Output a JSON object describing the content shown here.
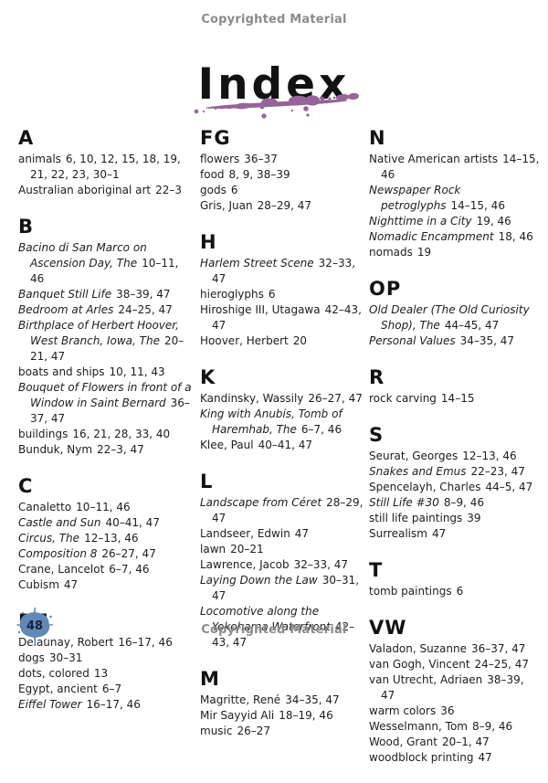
{
  "page": {
    "copyright_top": "Copyrighted Material",
    "copyright_bottom": "Copyrighted Material",
    "title": "Index",
    "page_number": "48",
    "colors": {
      "splatter_purple": "#95659a",
      "page_badge_blue": "#6288b6",
      "text": "#1d1d1f",
      "copyright_gray": "#8b8b8b"
    }
  },
  "index": {
    "columns": [
      {
        "sections": [
          {
            "heading": "A",
            "entries": [
              {
                "title": "animals",
                "italic": false,
                "pages": "6, 10, 12, 15, 18, 19, 21, 22, 23, 30–1"
              },
              {
                "title": "Australian aboriginal art",
                "italic": false,
                "pages": "22–3"
              }
            ]
          },
          {
            "heading": "B",
            "entries": [
              {
                "title": "Bacino di San Marco on Ascension Day, The",
                "italic": true,
                "pages": "10–11, 46"
              },
              {
                "title": "Banquet Still Life",
                "italic": true,
                "pages": "38–39, 47"
              },
              {
                "title": "Bedroom at Arles",
                "italic": true,
                "pages": "24–25, 47"
              },
              {
                "title": "Birthplace of Herbert Hoover, West Branch, Iowa, The",
                "italic": true,
                "pages": "20–21, 47"
              },
              {
                "title": "boats and ships",
                "italic": false,
                "pages": "10, 11, 43"
              },
              {
                "title": "Bouquet of Flowers in front of a Window in Saint Bernard",
                "italic": true,
                "pages": "36–37, 47"
              },
              {
                "title": "buildings",
                "italic": false,
                "pages": "16, 21, 28, 33, 40"
              },
              {
                "title": "Bunduk, Nym",
                "italic": false,
                "pages": "22–3, 47"
              }
            ]
          },
          {
            "heading": "C",
            "entries": [
              {
                "title": "Canaletto",
                "italic": false,
                "pages": "10–11, 46"
              },
              {
                "title": "Castle and Sun",
                "italic": true,
                "pages": "40–41, 47"
              },
              {
                "title": "Circus, The",
                "italic": true,
                "pages": "12–13, 46"
              },
              {
                "title": "Composition 8",
                "italic": true,
                "pages": "26–27, 47"
              },
              {
                "title": "Crane, Lancelot",
                "italic": false,
                "pages": "6–7, 46"
              },
              {
                "title": "Cubism",
                "italic": false,
                "pages": "47"
              }
            ]
          },
          {
            "heading": "DE",
            "entries": [
              {
                "title": "Delaunay, Robert",
                "italic": false,
                "pages": "16–17, 46"
              },
              {
                "title": "dogs",
                "italic": false,
                "pages": "30–31"
              },
              {
                "title": "dots, colored",
                "italic": false,
                "pages": "13"
              },
              {
                "title": "Egypt, ancient",
                "italic": false,
                "pages": "6–7"
              },
              {
                "title": "Eiffel Tower",
                "italic": true,
                "pages": "16–17, 46"
              }
            ]
          }
        ]
      },
      {
        "sections": [
          {
            "heading": "FG",
            "entries": [
              {
                "title": "flowers",
                "italic": false,
                "pages": "36–37"
              },
              {
                "title": "food",
                "italic": false,
                "pages": "8, 9, 38–39"
              },
              {
                "title": "gods",
                "italic": false,
                "pages": "6"
              },
              {
                "title": "Gris, Juan",
                "italic": false,
                "pages": "28–29, 47"
              }
            ]
          },
          {
            "heading": "H",
            "entries": [
              {
                "title": "Harlem Street Scene",
                "italic": true,
                "pages": "32–33, 47"
              },
              {
                "title": "hieroglyphs",
                "italic": false,
                "pages": "6"
              },
              {
                "title": "Hiroshige III, Utagawa",
                "italic": false,
                "pages": "42–43, 47"
              },
              {
                "title": "Hoover, Herbert",
                "italic": false,
                "pages": "20"
              }
            ]
          },
          {
            "heading": "K",
            "entries": [
              {
                "title": "Kandinsky, Wassily",
                "italic": false,
                "pages": "26–27, 47"
              },
              {
                "title": "King with Anubis, Tomb of Haremhab, The",
                "italic": true,
                "pages": "6–7, 46"
              },
              {
                "title": "Klee, Paul",
                "italic": false,
                "pages": "40–41, 47"
              }
            ]
          },
          {
            "heading": "L",
            "entries": [
              {
                "title": "Landscape from Céret",
                "italic": true,
                "pages": "28–29, 47"
              },
              {
                "title": "Landseer, Edwin",
                "italic": false,
                "pages": "47"
              },
              {
                "title": "lawn",
                "italic": false,
                "pages": "20–21"
              },
              {
                "title": "Lawrence, Jacob",
                "italic": false,
                "pages": "32–33, 47"
              },
              {
                "title": "Laying Down the Law",
                "italic": true,
                "pages": "30–31, 47"
              },
              {
                "title": "Locomotive along the Yokohama Waterfront",
                "italic": true,
                "pages": "42–43, 47"
              }
            ]
          },
          {
            "heading": "M",
            "entries": [
              {
                "title": "Magritte, René",
                "italic": false,
                "pages": "34–35, 47"
              },
              {
                "title": "Mir Sayyid Ali",
                "italic": false,
                "pages": "18–19, 46"
              },
              {
                "title": "music",
                "italic": false,
                "pages": "26–27"
              }
            ]
          }
        ]
      },
      {
        "sections": [
          {
            "heading": "N",
            "entries": [
              {
                "title": "Native American artists",
                "italic": false,
                "pages": "14–15, 46"
              },
              {
                "title": "Newspaper Rock petroglyphs",
                "italic": true,
                "pages": "14–15, 46"
              },
              {
                "title": "Nighttime in a City",
                "italic": true,
                "pages": "19, 46"
              },
              {
                "title": "Nomadic Encampment",
                "italic": true,
                "pages": "18, 46"
              },
              {
                "title": "nomads",
                "italic": false,
                "pages": "19"
              }
            ]
          },
          {
            "heading": "OP",
            "entries": [
              {
                "title": "Old Dealer (The Old Curiosity Shop), The",
                "italic": true,
                "pages": "44–45, 47"
              },
              {
                "title": "Personal Values",
                "italic": true,
                "pages": "34–35, 47"
              }
            ]
          },
          {
            "heading": "R",
            "entries": [
              {
                "title": "rock carving",
                "italic": false,
                "pages": "14–15"
              }
            ]
          },
          {
            "heading": "S",
            "entries": [
              {
                "title": "Seurat, Georges",
                "italic": false,
                "pages": "12–13, 46"
              },
              {
                "title": "Snakes and Emus",
                "italic": true,
                "pages": "22–23, 47"
              },
              {
                "title": "Spencelayh, Charles",
                "italic": false,
                "pages": "44–5, 47"
              },
              {
                "title": "Still Life #30",
                "italic": true,
                "pages": "8–9, 46"
              },
              {
                "title": "still life paintings",
                "italic": false,
                "pages": "39"
              },
              {
                "title": "Surrealism",
                "italic": false,
                "pages": "47"
              }
            ]
          },
          {
            "heading": "T",
            "entries": [
              {
                "title": "tomb paintings",
                "italic": false,
                "pages": "6"
              }
            ]
          },
          {
            "heading": "VW",
            "entries": [
              {
                "title": "Valadon, Suzanne",
                "italic": false,
                "pages": "36–37, 47"
              },
              {
                "title": "van Gogh, Vincent",
                "italic": false,
                "pages": "24–25, 47"
              },
              {
                "title": "van Utrecht, Adriaen",
                "italic": false,
                "pages": "38–39, 47"
              },
              {
                "title": "warm colors",
                "italic": false,
                "pages": "36"
              },
              {
                "title": "Wesselmann, Tom",
                "italic": false,
                "pages": "8–9, 46"
              },
              {
                "title": "Wood, Grant",
                "italic": false,
                "pages": "20–1, 47"
              },
              {
                "title": "woodblock printing",
                "italic": false,
                "pages": "47"
              }
            ]
          }
        ]
      }
    ]
  }
}
